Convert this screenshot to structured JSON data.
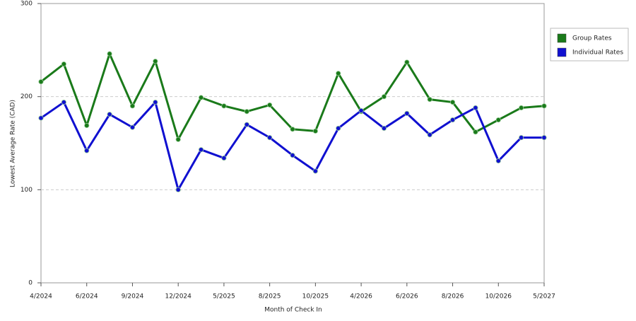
{
  "chart_data": {
    "type": "line",
    "x_label": "Month of Check In",
    "y_label": "Lowest Average Rate (CAD)",
    "categories": [
      "4/2024",
      null,
      "6/2024",
      null,
      "9/2024",
      null,
      "12/2024",
      null,
      "5/2025",
      null,
      "8/2025",
      null,
      "10/2025",
      null,
      "4/2026",
      null,
      "6/2026",
      null,
      "8/2026",
      null,
      "10/2026",
      null,
      "5/2027"
    ],
    "series": [
      {
        "name": "Group Rates",
        "color": "#1a7a1a",
        "values": [
          216,
          235,
          169,
          246,
          190,
          238,
          154,
          199,
          190,
          184,
          191,
          165,
          163,
          225,
          184,
          200,
          237,
          197,
          194,
          162,
          175,
          188,
          190
        ]
      },
      {
        "name": "Individual Rates",
        "color": "#1010d0",
        "values": [
          177,
          194,
          142,
          181,
          167,
          194,
          100,
          143,
          134,
          170,
          156,
          137,
          120,
          166,
          185,
          166,
          182,
          159,
          175,
          188,
          131,
          156,
          156
        ]
      }
    ],
    "ylim": [
      0,
      300
    ],
    "yticks": [
      0,
      100,
      200,
      300
    ],
    "grid": true,
    "legend": "top-right"
  }
}
